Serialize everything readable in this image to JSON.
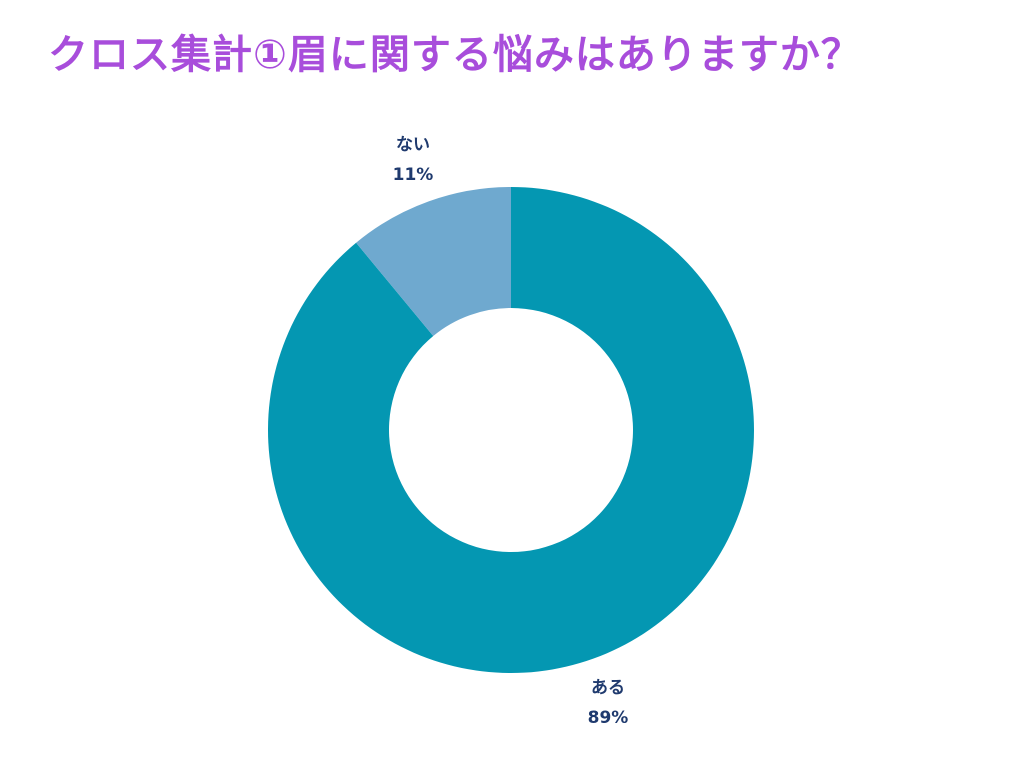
{
  "title": "クロス集計①眉に関する悩みはありますか？",
  "colors": {
    "title": "#a84ddb",
    "label": "#1f3a6e"
  },
  "chart_data": {
    "type": "pie",
    "donut": true,
    "slices": [
      {
        "label": "ある",
        "value": 89,
        "value_label": "89%",
        "color": "#0497b2"
      },
      {
        "label": "ない",
        "value": 11,
        "value_label": "11%",
        "color": "#6fa9cf"
      }
    ]
  }
}
